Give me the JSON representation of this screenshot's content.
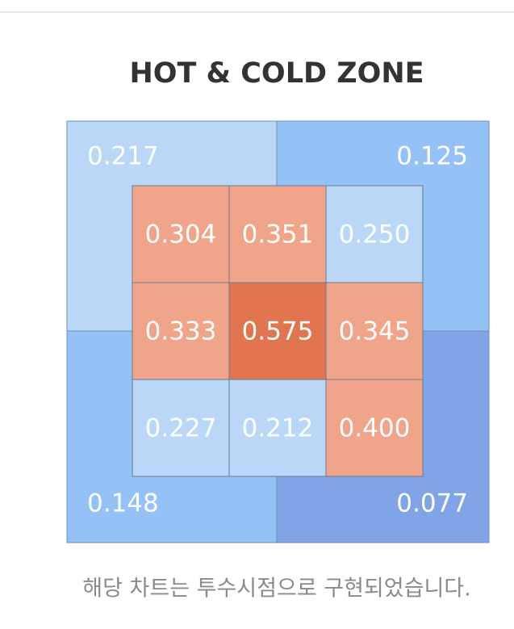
{
  "chart_data": {
    "type": "heatmap",
    "title": "HOT & COLD ZONE",
    "outer": {
      "values": [
        0.217,
        0.125,
        0.148,
        0.077
      ],
      "value_labels": [
        "0.217",
        "0.125",
        "0.148",
        "0.077"
      ],
      "colors": [
        "#bad7f8",
        "#94c2f7",
        "#94c2f7",
        "#80a4e5"
      ]
    },
    "inner": {
      "values": [
        [
          0.304,
          0.351,
          0.25
        ],
        [
          0.333,
          0.575,
          0.345
        ],
        [
          0.227,
          0.212,
          0.4
        ]
      ],
      "value_labels": [
        [
          "0.304",
          "0.351",
          "0.250"
        ],
        [
          "0.333",
          "0.575",
          "0.345"
        ],
        [
          "0.227",
          "0.212",
          "0.400"
        ]
      ],
      "colors": [
        [
          "#f0a58b",
          "#f0a58b",
          "#bad7f8"
        ],
        [
          "#f0a58b",
          "#e07550",
          "#f0a58b"
        ],
        [
          "#bad7f8",
          "#bad7f8",
          "#f0a58b"
        ]
      ]
    },
    "footnote": "해당 차트는 투수시점으로 구현되었습니다."
  }
}
